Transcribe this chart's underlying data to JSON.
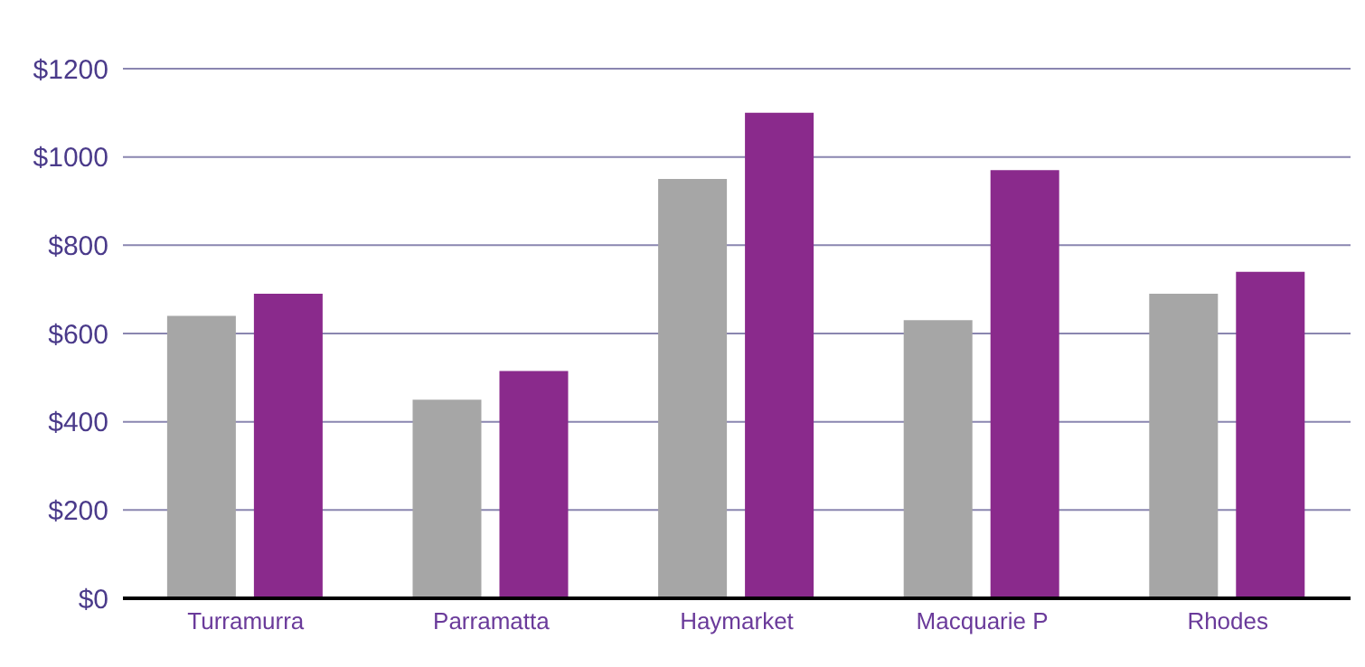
{
  "chart_data": {
    "type": "bar",
    "categories": [
      "Turramurra",
      "Parramatta",
      "Haymarket",
      "Macquarie P",
      "Rhodes"
    ],
    "series": [
      {
        "color": "#a6a6a6",
        "values": [
          640,
          450,
          950,
          630,
          690
        ]
      },
      {
        "color": "#8a2a8c",
        "values": [
          690,
          515,
          1100,
          970,
          740
        ]
      }
    ],
    "ylim": [
      0,
      1200
    ],
    "yticks": [
      {
        "value": 0,
        "label": "$0"
      },
      {
        "value": 200,
        "label": "$200"
      },
      {
        "value": 400,
        "label": "$400"
      },
      {
        "value": 600,
        "label": "$600"
      },
      {
        "value": 800,
        "label": "$800"
      },
      {
        "value": 1000,
        "label": "$1000"
      },
      {
        "value": 1200,
        "label": "$1200"
      }
    ],
    "grid": "y"
  }
}
